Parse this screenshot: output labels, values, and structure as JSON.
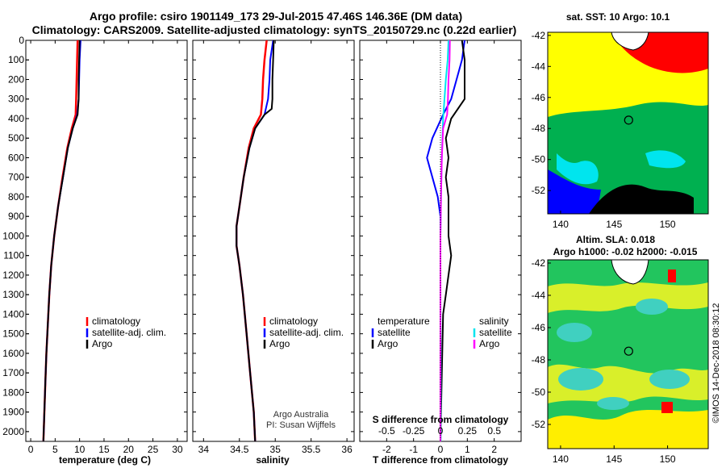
{
  "title": {
    "line1": "Argo profile: csiro 1901149_173 29-Jul-2015 47.46S 146.36E (DM data)",
    "line2": "Climatology: CARS2009. Satellite-adjusted climatology: synTS_20150729.nc (0.22d earlier)"
  },
  "credit": {
    "line1": "Argo Australia",
    "line2": "PI: Susan Wijffels"
  },
  "stamp": "©IMOS 14-Dec-2018 08:30:12",
  "colors": {
    "climatology": "#ff0000",
    "satellite": "#0000ff",
    "argo": "#000000",
    "sal_satellite": "#00e5ee",
    "sal_argo": "#ff00ff"
  },
  "chart_data": [
    {
      "type": "line",
      "panel": "temperature",
      "xlabel": "temperature (deg C)",
      "x_ticks": [
        "0",
        "5",
        "10",
        "15",
        "20",
        "25",
        "30"
      ],
      "xlim": [
        -1,
        32
      ],
      "ylim": [
        2050,
        0
      ],
      "y_ticks": [
        "0",
        "100",
        "200",
        "300",
        "400",
        "500",
        "600",
        "700",
        "800",
        "900",
        "1000",
        "1100",
        "1200",
        "1300",
        "1400",
        "1500",
        "1600",
        "1700",
        "1800",
        "1900",
        "2000"
      ],
      "legend": [
        "climatology",
        "satellite-adj. clim.",
        "Argo"
      ],
      "series": [
        {
          "name": "climatology",
          "points": [
            [
              9.6,
              0
            ],
            [
              9.5,
              100
            ],
            [
              9.4,
              200
            ],
            [
              9.3,
              300
            ],
            [
              9.2,
              380
            ],
            [
              8.4,
              450
            ],
            [
              7.5,
              550
            ],
            [
              6.5,
              700
            ],
            [
              5.6,
              850
            ],
            [
              4.8,
              1000
            ],
            [
              4.2,
              1150
            ],
            [
              3.8,
              1300
            ],
            [
              3.5,
              1450
            ],
            [
              3.2,
              1600
            ],
            [
              3.0,
              1750
            ],
            [
              2.8,
              1900
            ],
            [
              2.6,
              2050
            ]
          ]
        },
        {
          "name": "satellite-adj. clim.",
          "points": [
            [
              10.2,
              0
            ],
            [
              10.0,
              100
            ],
            [
              9.9,
              200
            ],
            [
              9.8,
              300
            ],
            [
              9.5,
              380
            ],
            [
              8.6,
              450
            ],
            [
              7.6,
              550
            ],
            [
              6.6,
              700
            ],
            [
              5.6,
              850
            ],
            [
              4.8,
              1000
            ],
            [
              4.2,
              1150
            ],
            [
              3.8,
              1300
            ],
            [
              3.5,
              1450
            ],
            [
              3.2,
              1600
            ],
            [
              3.0,
              1750
            ],
            [
              2.8,
              1900
            ],
            [
              2.6,
              2050
            ]
          ]
        },
        {
          "name": "Argo",
          "points": [
            [
              10.0,
              0
            ],
            [
              9.9,
              100
            ],
            [
              9.8,
              200
            ],
            [
              9.8,
              300
            ],
            [
              9.6,
              380
            ],
            [
              8.6,
              450
            ],
            [
              7.6,
              550
            ],
            [
              6.6,
              700
            ],
            [
              5.6,
              850
            ],
            [
              4.8,
              1000
            ],
            [
              4.2,
              1150
            ],
            [
              3.8,
              1300
            ],
            [
              3.5,
              1450
            ],
            [
              3.2,
              1600
            ],
            [
              3.0,
              1750
            ],
            [
              2.8,
              1900
            ],
            [
              2.6,
              2050
            ]
          ]
        }
      ]
    },
    {
      "type": "line",
      "panel": "salinity",
      "xlabel": "salinity",
      "x_ticks": [
        "34",
        "34.5",
        "35",
        "35.5",
        "36"
      ],
      "tick_values": [
        34,
        34.5,
        35,
        35.5,
        36
      ],
      "xlim": [
        33.85,
        36.1
      ],
      "ylim": [
        2050,
        0
      ],
      "legend": [
        "climatology",
        "satellite-adj. clim.",
        "Argo"
      ],
      "series": [
        {
          "name": "climatology",
          "points": [
            [
              34.88,
              0
            ],
            [
              34.85,
              100
            ],
            [
              34.83,
              200
            ],
            [
              34.82,
              300
            ],
            [
              34.8,
              380
            ],
            [
              34.7,
              450
            ],
            [
              34.63,
              550
            ],
            [
              34.56,
              700
            ],
            [
              34.5,
              850
            ],
            [
              34.46,
              950
            ],
            [
              34.46,
              1050
            ],
            [
              34.5,
              1150
            ],
            [
              34.55,
              1300
            ],
            [
              34.6,
              1500
            ],
            [
              34.65,
              1700
            ],
            [
              34.7,
              1900
            ],
            [
              34.72,
              2050
            ]
          ]
        },
        {
          "name": "satellite-adj. clim.",
          "points": [
            [
              34.97,
              0
            ],
            [
              34.93,
              100
            ],
            [
              34.92,
              200
            ],
            [
              34.9,
              300
            ],
            [
              34.85,
              380
            ],
            [
              34.72,
              450
            ],
            [
              34.64,
              550
            ],
            [
              34.56,
              700
            ],
            [
              34.5,
              850
            ],
            [
              34.46,
              950
            ],
            [
              34.46,
              1050
            ],
            [
              34.5,
              1150
            ],
            [
              34.55,
              1300
            ],
            [
              34.6,
              1500
            ],
            [
              34.65,
              1700
            ],
            [
              34.7,
              1900
            ],
            [
              34.72,
              2050
            ]
          ]
        },
        {
          "name": "Argo",
          "points": [
            [
              34.98,
              0
            ],
            [
              34.97,
              100
            ],
            [
              34.96,
              200
            ],
            [
              34.96,
              300
            ],
            [
              34.95,
              350
            ],
            [
              34.85,
              380
            ],
            [
              34.72,
              450
            ],
            [
              34.64,
              550
            ],
            [
              34.56,
              700
            ],
            [
              34.5,
              850
            ],
            [
              34.46,
              950
            ],
            [
              34.46,
              1050
            ],
            [
              34.5,
              1150
            ],
            [
              34.55,
              1300
            ],
            [
              34.6,
              1500
            ],
            [
              34.65,
              1700
            ],
            [
              34.7,
              1900
            ],
            [
              34.72,
              2050
            ]
          ]
        }
      ]
    },
    {
      "type": "line",
      "panel": "difference",
      "xlabel": "T difference from climatology",
      "x_ticks": [
        "-2",
        "-1",
        "0",
        "1",
        "2"
      ],
      "xlim": [
        -3,
        3
      ],
      "secondary_xlabel": "S difference from climatology",
      "secondary_ticks": [
        "-0.5",
        "-0.25",
        "0",
        "0.25",
        "0.5"
      ],
      "ylim": [
        2050,
        0
      ],
      "legend_left_title": "temperature",
      "legend_right_title": "salinity",
      "legend_left": [
        "satellite",
        "Argo"
      ],
      "legend_right": [
        "satellite",
        "Argo"
      ],
      "series": [
        {
          "name": "temperature satellite",
          "points": [
            [
              0.9,
              0
            ],
            [
              0.8,
              100
            ],
            [
              0.6,
              200
            ],
            [
              0.4,
              300
            ],
            [
              0.1,
              380
            ],
            [
              -0.3,
              500
            ],
            [
              -0.5,
              600
            ],
            [
              -0.3,
              700
            ],
            [
              -0.1,
              800
            ],
            [
              0,
              900
            ],
            [
              0,
              1100
            ],
            [
              0,
              1400
            ],
            [
              0,
              2050
            ]
          ]
        },
        {
          "name": "temperature Argo",
          "points": [
            [
              0.8,
              0
            ],
            [
              0.9,
              100
            ],
            [
              0.9,
              200
            ],
            [
              0.9,
              300
            ],
            [
              0.4,
              400
            ],
            [
              0.2,
              500
            ],
            [
              0.3,
              600
            ],
            [
              0.2,
              700
            ],
            [
              0.3,
              800
            ],
            [
              0.3,
              1000
            ],
            [
              0.4,
              1100
            ],
            [
              0.3,
              1200
            ],
            [
              0.2,
              1300
            ],
            [
              0.1,
              1400
            ],
            [
              0.05,
              1700
            ],
            [
              0.0,
              2050
            ]
          ]
        },
        {
          "name": "salinity satellite",
          "points": [
            [
              0.3,
              0
            ],
            [
              0.27,
              100
            ],
            [
              0.2,
              200
            ],
            [
              0.15,
              300
            ],
            [
              0.1,
              400
            ],
            [
              0.05,
              600
            ],
            [
              0.02,
              800
            ],
            [
              0,
              1000
            ],
            [
              0,
              1300
            ],
            [
              0.01,
              1600
            ],
            [
              0.01,
              2050
            ]
          ]
        },
        {
          "name": "salinity Argo",
          "points": [
            [
              0.35,
              0
            ],
            [
              0.34,
              100
            ],
            [
              0.3,
              200
            ],
            [
              0.28,
              300
            ],
            [
              0.25,
              380
            ],
            [
              0.1,
              450
            ],
            [
              0.05,
              600
            ],
            [
              0.02,
              800
            ],
            [
              0,
              1000
            ],
            [
              0,
              1300
            ],
            [
              0,
              1600
            ],
            [
              0,
              2050
            ]
          ]
        }
      ]
    },
    {
      "type": "heatmap",
      "panel": "sat SST",
      "title": "sat. SST: 10 Argo: 10.1",
      "x_ticks": [
        "140",
        "145",
        "150"
      ],
      "y_ticks": [
        "-42",
        "-44",
        "-46",
        "-48",
        "-50",
        "-52"
      ],
      "marker": {
        "lon": 146.36,
        "lat": -47.46
      }
    },
    {
      "type": "heatmap",
      "panel": "altimetry",
      "title_line1": "Altim. SLA: 0.018",
      "title_line2": "Argo h1000: -0.02 h2000: -0.015",
      "x_ticks": [
        "140",
        "145",
        "150"
      ],
      "y_ticks": [
        "-42",
        "-44",
        "-46",
        "-48",
        "-50",
        "-52"
      ],
      "marker": {
        "lon": 146.36,
        "lat": -47.46
      }
    }
  ]
}
